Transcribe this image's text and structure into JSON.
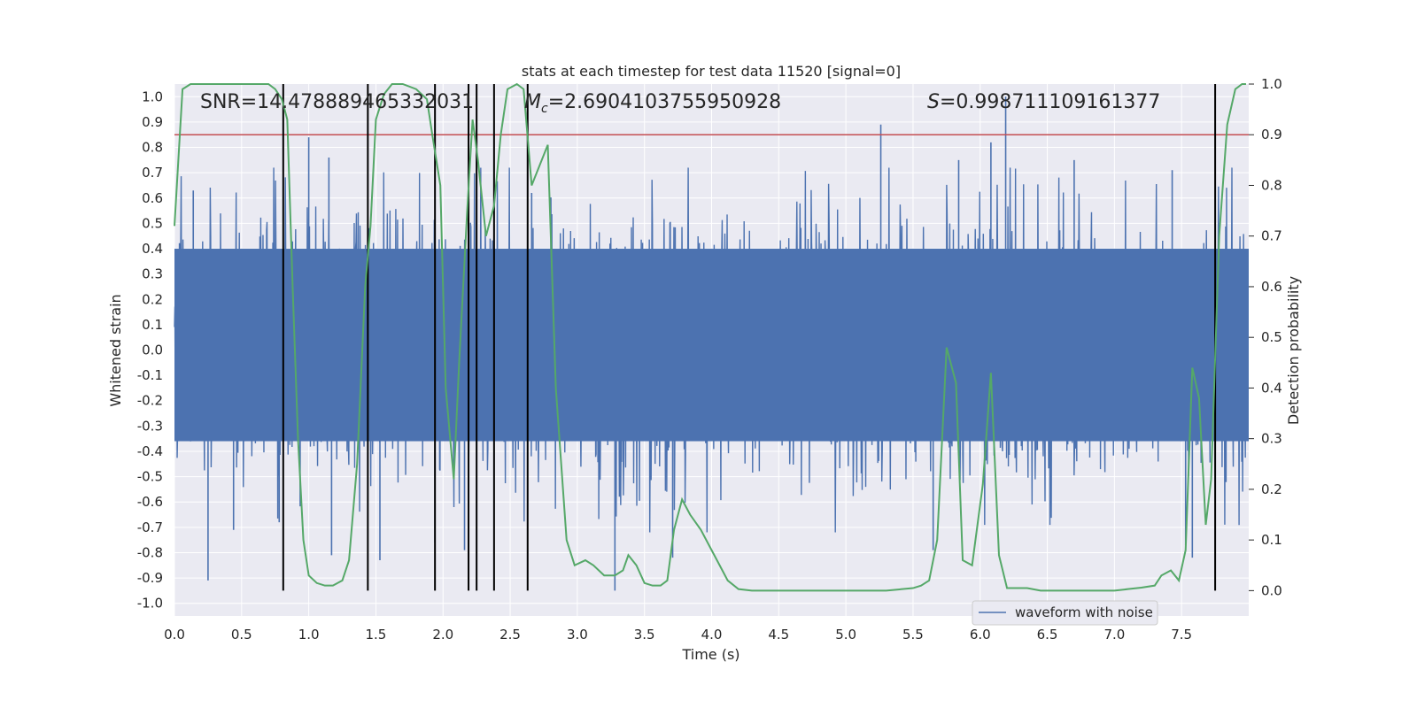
{
  "chart_data": {
    "type": "line",
    "title": "stats at each timestep for test data 11520 [signal=0]",
    "xlabel": "Time (s)",
    "ylabel_left": "Whitened strain",
    "ylabel_right": "Detection probability",
    "xlim": [
      0.0,
      8.0
    ],
    "ylim_left": [
      -1.05,
      1.05
    ],
    "ylim_right": [
      -0.05,
      1.0
    ],
    "x_ticks": [
      "0.0",
      "0.5",
      "1.0",
      "1.5",
      "2.0",
      "2.5",
      "3.0",
      "3.5",
      "4.0",
      "4.5",
      "5.0",
      "5.5",
      "6.0",
      "6.5",
      "7.0",
      "7.5"
    ],
    "x_tick_values": [
      0.0,
      0.5,
      1.0,
      1.5,
      2.0,
      2.5,
      3.0,
      3.5,
      4.0,
      4.5,
      5.0,
      5.5,
      6.0,
      6.5,
      7.0,
      7.5
    ],
    "y_left_ticks": [
      "1.0",
      "0.9",
      "0.8",
      "0.7",
      "0.6",
      "0.5",
      "0.4",
      "0.3",
      "0.2",
      "0.1",
      "0.0",
      "-0.1",
      "-0.2",
      "-0.3",
      "-0.4",
      "-0.5",
      "-0.6",
      "-0.7",
      "-0.8",
      "-0.9",
      "-1.0"
    ],
    "y_left_tick_values": [
      1.0,
      0.9,
      0.8,
      0.7,
      0.6,
      0.5,
      0.4,
      0.3,
      0.2,
      0.1,
      0.0,
      -0.1,
      -0.2,
      -0.3,
      -0.4,
      -0.5,
      -0.6,
      -0.7,
      -0.8,
      -0.9,
      -1.0
    ],
    "y_right_ticks": [
      "1.0",
      "0.9",
      "0.8",
      "0.7",
      "0.6",
      "0.5",
      "0.4",
      "0.3",
      "0.2",
      "0.1",
      "0.0"
    ],
    "y_right_tick_values": [
      1.0,
      0.9,
      0.8,
      0.7,
      0.6,
      0.5,
      0.4,
      0.3,
      0.2,
      0.1,
      0.0
    ],
    "stats": {
      "snr": "SNR=14.478889465332031",
      "mc_prefix": "M",
      "mc_sub": "c",
      "mc_value": "=2.6904103755950928",
      "s_prefix": "S",
      "s_value": "=0.998711109161377"
    },
    "threshold_right": 0.9,
    "threshold_color": "#c44e52",
    "vlines_x": [
      0.81,
      1.44,
      1.94,
      2.19,
      2.25,
      2.38,
      2.63,
      7.75
    ],
    "waveform": {
      "name": "waveform with noise",
      "color": "#4c72b0",
      "envelope_typical": 0.42,
      "spikes": [
        {
          "t": 0.14,
          "v": 0.63
        },
        {
          "t": 0.25,
          "v": -0.91
        },
        {
          "t": 0.44,
          "v": -0.71
        },
        {
          "t": 0.78,
          "v": -0.68
        },
        {
          "t": 1.0,
          "v": 0.84
        },
        {
          "t": 1.15,
          "v": 0.76
        },
        {
          "t": 1.17,
          "v": -0.81
        },
        {
          "t": 1.53,
          "v": -0.83
        },
        {
          "t": 1.94,
          "v": -0.76
        },
        {
          "t": 2.16,
          "v": -0.79
        },
        {
          "t": 2.66,
          "v": 0.62
        },
        {
          "t": 3.28,
          "v": -0.95
        },
        {
          "t": 3.71,
          "v": -0.82
        },
        {
          "t": 5.26,
          "v": 0.89
        },
        {
          "t": 5.65,
          "v": -0.79
        },
        {
          "t": 5.84,
          "v": 0.75
        },
        {
          "t": 6.08,
          "v": 0.82
        },
        {
          "t": 6.19,
          "v": 1.0
        },
        {
          "t": 6.7,
          "v": 0.75
        },
        {
          "t": 7.43,
          "v": 0.71
        },
        {
          "t": 7.53,
          "v": -0.77
        },
        {
          "t": 7.58,
          "v": -0.82
        }
      ]
    },
    "probability": {
      "color": "#55a868",
      "x": [
        0.0,
        0.06,
        0.12,
        0.25,
        0.5,
        0.7,
        0.75,
        0.8,
        0.84,
        0.88,
        0.92,
        0.96,
        1.0,
        1.06,
        1.12,
        1.18,
        1.25,
        1.3,
        1.36,
        1.42,
        1.46,
        1.5,
        1.56,
        1.62,
        1.7,
        1.8,
        1.88,
        1.92,
        1.98,
        2.02,
        2.08,
        2.12,
        2.18,
        2.22,
        2.26,
        2.32,
        2.38,
        2.43,
        2.48,
        2.55,
        2.6,
        2.66,
        2.72,
        2.78,
        2.84,
        2.92,
        2.98,
        3.06,
        3.12,
        3.2,
        3.28,
        3.34,
        3.38,
        3.44,
        3.5,
        3.56,
        3.62,
        3.67,
        3.72,
        3.78,
        3.84,
        3.92,
        3.98,
        4.06,
        4.12,
        4.2,
        4.3,
        4.5,
        5.0,
        5.3,
        5.5,
        5.56,
        5.62,
        5.68,
        5.75,
        5.82,
        5.87,
        5.94,
        6.02,
        6.08,
        6.14,
        6.2,
        6.3,
        6.35,
        6.45,
        6.5,
        7.0,
        7.1,
        7.2,
        7.3,
        7.35,
        7.42,
        7.48,
        7.53,
        7.58,
        7.63,
        7.68,
        7.72,
        7.78,
        7.84,
        7.9,
        7.95,
        7.98
      ],
      "y": [
        0.72,
        0.99,
        1.0,
        1.0,
        1.0,
        1.0,
        0.99,
        0.97,
        0.93,
        0.6,
        0.3,
        0.1,
        0.03,
        0.015,
        0.01,
        0.01,
        0.02,
        0.06,
        0.25,
        0.6,
        0.72,
        0.93,
        0.98,
        1.0,
        1.0,
        0.99,
        0.97,
        0.9,
        0.8,
        0.4,
        0.22,
        0.45,
        0.75,
        0.93,
        0.85,
        0.7,
        0.76,
        0.9,
        0.99,
        1.0,
        0.99,
        0.8,
        0.84,
        0.88,
        0.4,
        0.1,
        0.05,
        0.06,
        0.05,
        0.03,
        0.03,
        0.04,
        0.07,
        0.05,
        0.015,
        0.01,
        0.01,
        0.02,
        0.12,
        0.18,
        0.15,
        0.12,
        0.09,
        0.05,
        0.02,
        0.003,
        0.0,
        0.0,
        0.0,
        0.0,
        0.005,
        0.01,
        0.02,
        0.1,
        0.48,
        0.41,
        0.06,
        0.05,
        0.21,
        0.43,
        0.07,
        0.005,
        0.005,
        0.005,
        0.0,
        0.0,
        0.0,
        0.003,
        0.006,
        0.01,
        0.03,
        0.04,
        0.02,
        0.08,
        0.44,
        0.38,
        0.13,
        0.22,
        0.7,
        0.92,
        0.99,
        1.0,
        1.0
      ]
    },
    "legend": {
      "placement": "lower-right",
      "label": "waveform with noise"
    },
    "grid": true,
    "colors": {
      "axes_bg": "#eaeaf2",
      "grid": "#ffffff",
      "vline": "#000000"
    }
  }
}
